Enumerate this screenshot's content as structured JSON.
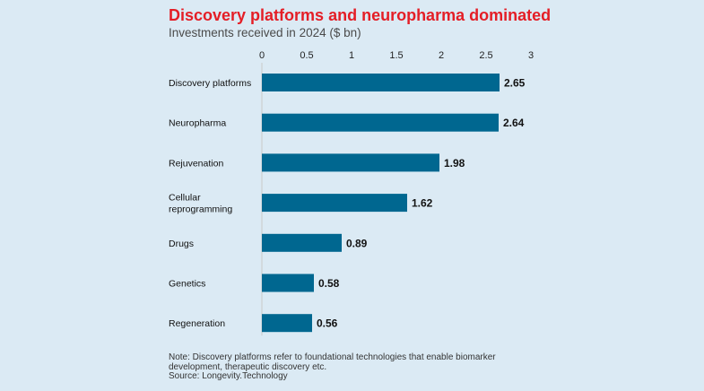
{
  "header": {
    "title": "Discovery platforms and neuropharma dominated",
    "subtitle": "Investments received in 2024 ($ bn)"
  },
  "footer": {
    "note_line1": "Note: Discovery platforms refer to foundational technologies that enable biomarker",
    "note_line2": "development, therapeutic discovery etc.",
    "source": "Source: Longevity.Technology"
  },
  "colors": {
    "bar": "#006790",
    "title": "#e41e26",
    "background": "#dbeaf4"
  },
  "chart_data": {
    "type": "bar",
    "orientation": "horizontal",
    "title": "Discovery platforms and neuropharma dominated",
    "subtitle": "Investments received in 2024 ($ bn)",
    "categories": [
      [
        "Discovery platforms"
      ],
      [
        "Neuropharma"
      ],
      [
        "Rejuvenation"
      ],
      [
        "Cellular",
        "reprogramming"
      ],
      [
        "Drugs"
      ],
      [
        "Genetics"
      ],
      [
        "Regeneration"
      ]
    ],
    "values": [
      2.65,
      2.64,
      1.98,
      1.62,
      0.89,
      0.58,
      0.56
    ],
    "value_labels": [
      "2.65",
      "2.64",
      "1.98",
      "1.62",
      "0.89",
      "0.58",
      "0.56"
    ],
    "xlim": [
      0,
      3
    ],
    "x_ticks": [
      0,
      0.5,
      1,
      1.5,
      2,
      2.5,
      3
    ],
    "x_tick_labels": [
      "0",
      "0.5",
      "1",
      "1.5",
      "2",
      "2.5",
      "3"
    ],
    "axis_position": "top",
    "grid": false,
    "legend": "none"
  }
}
